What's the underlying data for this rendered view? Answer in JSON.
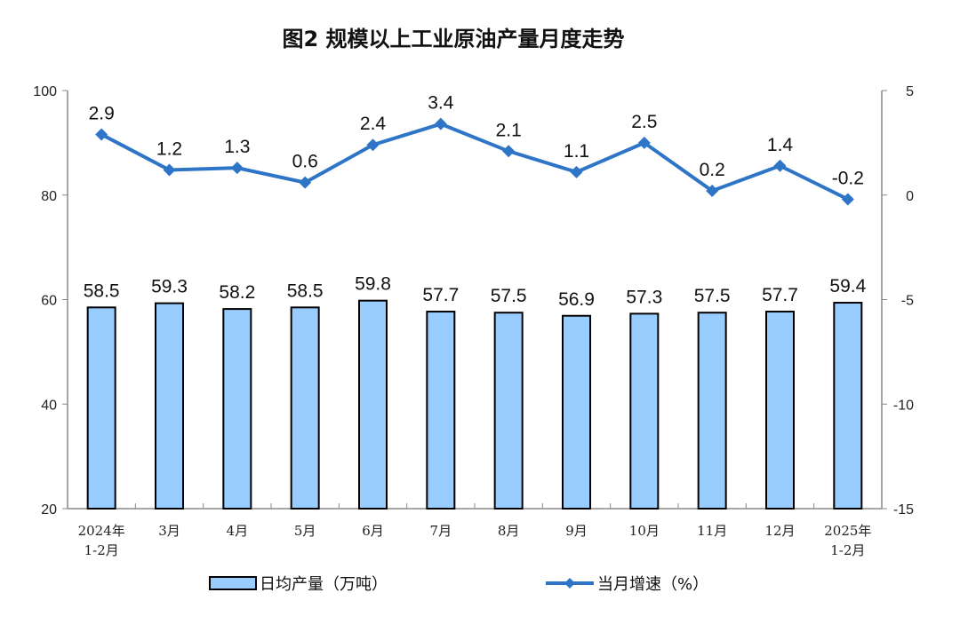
{
  "chart_data": {
    "type": "bar+line",
    "title": "图2  规模以上工业原油产量月度走势",
    "categories": [
      [
        "2024年",
        "1-2月"
      ],
      [
        "3月"
      ],
      [
        "4月"
      ],
      [
        "5月"
      ],
      [
        "6月"
      ],
      [
        "7月"
      ],
      [
        "8月"
      ],
      [
        "9月"
      ],
      [
        "10月"
      ],
      [
        "11月"
      ],
      [
        "12月"
      ],
      [
        "2025年",
        "1-2月"
      ]
    ],
    "series": [
      {
        "name": "日均产量（万吨）",
        "type": "bar",
        "axis": "left",
        "color": "#99CCFF",
        "values": [
          58.5,
          59.3,
          58.2,
          58.5,
          59.8,
          57.7,
          57.5,
          56.9,
          57.3,
          57.5,
          57.7,
          59.4
        ]
      },
      {
        "name": "当月增速（%）",
        "type": "line",
        "axis": "right",
        "color": "#2E75C8",
        "marker": "diamond",
        "values": [
          2.9,
          1.2,
          1.3,
          0.6,
          2.4,
          3.4,
          2.1,
          1.1,
          2.5,
          0.2,
          1.4,
          -0.2
        ]
      }
    ],
    "left_axis": {
      "ylim": [
        20,
        100
      ],
      "ticks": [
        20,
        40,
        60,
        80,
        100
      ]
    },
    "right_axis": {
      "ylim": [
        -15,
        5
      ],
      "ticks": [
        -15,
        -10,
        -5,
        0,
        5
      ]
    },
    "grid": false,
    "legend": "bottom"
  }
}
